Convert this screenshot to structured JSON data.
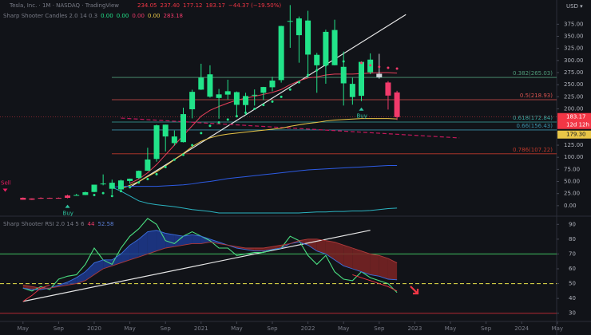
{
  "header": {
    "symbol": "Tesla, Inc. · 1M · NASDAQ · TradingView",
    "ohlc": [
      "234.05",
      "237.40",
      "177.12",
      "183.17",
      "−44.37 (−19.50%)"
    ],
    "currency": "USD ▾"
  },
  "chart_data": [
    {
      "type": "candlestick",
      "title": "Sharp Shooter Candles 2.0 14 0.3",
      "readings": [
        {
          "label": "0.00",
          "color": "#22e389"
        },
        {
          "label": "0.00",
          "color": "#22e389"
        },
        {
          "label": "0.00",
          "color": "#f23a6b"
        },
        {
          "label": "0.00",
          "color": "#e8c547"
        },
        {
          "label": "283.18",
          "color": "#f23a6b"
        }
      ],
      "categories": [
        "2019-05",
        "2019-06",
        "2019-07",
        "2019-08",
        "2019-09",
        "2019-10",
        "2019-11",
        "2019-12",
        "2020-01",
        "2020-02",
        "2020-03",
        "2020-04",
        "2020-05",
        "2020-06",
        "2020-07",
        "2020-08",
        "2020-09",
        "2020-10",
        "2020-11",
        "2020-12",
        "2021-01",
        "2021-02",
        "2021-03",
        "2021-04",
        "2021-05",
        "2021-06",
        "2021-07",
        "2021-08",
        "2021-09",
        "2021-10",
        "2021-11",
        "2021-12",
        "2022-01",
        "2022-02",
        "2022-03",
        "2022-04",
        "2022-05",
        "2022-06",
        "2022-07",
        "2022-08",
        "2022-09",
        "2022-10",
        "2022-11"
      ],
      "open": [
        16.3,
        12.4,
        15.1,
        16.1,
        15.0,
        16.2,
        21.0,
        22.1,
        28.3,
        45.7,
        47.4,
        33.6,
        51.0,
        57.2,
        72.2,
        96.6,
        167.4,
        143.0,
        131.3,
        199.2,
        239.8,
        271.4,
        230.0,
        229.5,
        234.6,
        207.9,
        227.9,
        233.3,
        244.7,
        259.5,
        381.7,
        386.9,
        382.6,
        311.7,
        289.9,
        363.0,
        286.9,
        251.7,
        227.0,
        301.8,
        272.6,
        254.5,
        234.05
      ],
      "high": [
        17.0,
        15.2,
        17.2,
        16.6,
        16.8,
        22.7,
        24.5,
        29.0,
        43.5,
        64.6,
        53.8,
        53.8,
        56.0,
        72.6,
        119.7,
        167.5,
        167.5,
        155.3,
        202.6,
        239.6,
        293.3,
        290.1,
        241.1,
        260.3,
        236.0,
        233.3,
        240.2,
        245.5,
        266.3,
        371.7,
        414.5,
        390.9,
        402.7,
        315.7,
        363.7,
        384.3,
        318.5,
        264.2,
        298.3,
        314.7,
        313.8,
        257.5,
        237.4
      ],
      "low": [
        12.2,
        11.8,
        14.2,
        14.6,
        14.8,
        15.2,
        20.8,
        21.8,
        28.1,
        42.1,
        23.4,
        29.8,
        45.4,
        55.4,
        72.0,
        91.0,
        112.1,
        124.0,
        130.7,
        180.4,
        239.1,
        223.3,
        179.8,
        219.8,
        182.3,
        187.7,
        206.8,
        218.2,
        236.3,
        254.3,
        326.2,
        295.4,
        264.0,
        233.3,
        252.0,
        290.0,
        206.9,
        208.7,
        216.2,
        271.8,
        262.5,
        198.6,
        177.12
      ],
      "close": [
        12.3,
        14.9,
        16.1,
        15.0,
        16.1,
        21.0,
        22.0,
        27.9,
        43.4,
        44.5,
        34.9,
        52.1,
        55.7,
        72.0,
        95.4,
        166.1,
        143.0,
        129.3,
        189.2,
        235.2,
        264.5,
        225.2,
        222.6,
        236.5,
        208.4,
        226.6,
        229.1,
        245.2,
        258.5,
        371.3,
        381.6,
        352.3,
        312.2,
        290.1,
        359.2,
        290.3,
        252.8,
        224.5,
        297.1,
        275.6,
        265.3,
        227.5,
        183.17
      ],
      "candle_colors": [
        "#f23a6b",
        "#f23a6b",
        "#f23a6b",
        "#f23a6b",
        "#f23a6b",
        "#f23a6b",
        "#22e389",
        "#22e389",
        "#22e389",
        "#22e389",
        "#22e389",
        "#22e389",
        "#22e389",
        "#22e389",
        "#22e389",
        "#22e389",
        "#22e389",
        "#22e389",
        "#22e389",
        "#22e389",
        "#22e389",
        "#22e389",
        "#22e389",
        "#22e389",
        "#22e389",
        "#22e389",
        "#22e389",
        "#22e389",
        "#22e389",
        "#22e389",
        "#22e389",
        "#22e389",
        "#22e389",
        "#22e389",
        "#22e389",
        "#22e389",
        "#22e389",
        "#22e389",
        "#22e389",
        "#22e389",
        "#d1d4dc",
        "#f23a6b",
        "#f23a6b"
      ],
      "series": [
        {
          "color": "#e8c547",
          "values": [
            null,
            null,
            null,
            null,
            null,
            null,
            null,
            null,
            null,
            null,
            null,
            35,
            42,
            50,
            60,
            70,
            82,
            95,
            108,
            122,
            133,
            140,
            145,
            148,
            150,
            152,
            154,
            156,
            158,
            160,
            164,
            167,
            170,
            172,
            175,
            177,
            178,
            179,
            180,
            180,
            180,
            180,
            179.3
          ]
        },
        {
          "color": "#e8405a",
          "values": [
            null,
            null,
            null,
            null,
            null,
            null,
            null,
            null,
            null,
            null,
            null,
            null,
            46,
            55,
            68,
            85,
            105,
            125,
            145,
            165,
            185,
            197,
            205,
            212,
            218,
            222,
            226,
            230,
            234,
            240,
            250,
            258,
            264,
            266,
            270,
            272,
            272,
            272,
            273,
            274,
            275,
            275,
            274
          ]
        },
        {
          "color": "#2d5be3",
          "values": [
            null,
            null,
            null,
            null,
            null,
            null,
            null,
            null,
            null,
            null,
            38,
            40,
            40,
            40,
            40,
            40,
            41,
            42,
            43,
            45,
            48,
            50,
            53,
            56,
            58,
            60,
            62,
            64,
            66,
            68,
            70,
            72,
            74,
            75,
            76,
            77,
            78,
            79,
            80,
            81,
            82,
            83,
            83
          ]
        },
        {
          "color": "#2bb3c0",
          "values": [
            null,
            null,
            null,
            null,
            null,
            null,
            null,
            null,
            null,
            null,
            38,
            30,
            20,
            10,
            5,
            2,
            0,
            -2,
            -5,
            -8,
            -10,
            -12,
            -15,
            -15,
            -15,
            -15,
            -15,
            -15,
            -15,
            -15,
            -15,
            -15,
            -14,
            -13,
            -13,
            -12,
            -12,
            -11,
            -11,
            -10,
            -8,
            -6,
            -5
          ]
        }
      ],
      "sar": [
        {
          "color": "#22e389",
          "values": [
            null,
            null,
            null,
            null,
            null,
            null,
            null,
            null,
            22,
            26,
            20,
            30,
            38,
            48,
            55,
            65,
            80,
            95,
            105,
            125,
            150,
            165,
            172,
            178,
            185,
            192,
            200,
            208,
            215,
            225,
            240,
            255,
            270,
            280,
            290,
            296,
            298,
            null,
            null,
            null,
            null,
            null,
            null
          ]
        },
        {
          "color": "#f23a6b",
          "values": [
            null,
            null,
            null,
            null,
            null,
            null,
            null,
            null,
            null,
            null,
            null,
            null,
            null,
            null,
            null,
            null,
            null,
            null,
            null,
            null,
            null,
            null,
            null,
            null,
            null,
            null,
            null,
            null,
            null,
            null,
            null,
            null,
            null,
            null,
            null,
            null,
            null,
            null,
            295,
            290,
            287,
            285,
            283.18
          ]
        }
      ],
      "fib": [
        {
          "label": "0.382(265.03)",
          "value": 265.03,
          "color": "#4f9a78"
        },
        {
          "label": "0.5(218.93)",
          "value": 218.93,
          "color": "#d9534f"
        },
        {
          "label": "0.618(172.84)",
          "value": 172.84,
          "color": "#3aa7a0"
        },
        {
          "label": "0.66(156.43)",
          "value": 156.43,
          "color": "#3a8fa7"
        },
        {
          "label": "0.786(107.22)",
          "value": 107.22,
          "color": "#c0392b"
        }
      ],
      "trendlines": [
        {
          "from": [
            "2020-05",
            38
          ],
          "to": [
            "2022-12",
            395
          ],
          "color": "#e6e6e6",
          "style": "solid"
        },
        {
          "from": [
            "2020-04",
            181
          ],
          "to": [
            "2023-06",
            140
          ],
          "color": "#c2185b",
          "style": "dashed"
        }
      ],
      "signals": [
        {
          "label": "Sell",
          "side": "sell",
          "date": "2019-03",
          "color": "#e91e63"
        },
        {
          "label": "Buy",
          "side": "buy",
          "date": "2019-10",
          "color": "#2ec4a0"
        },
        {
          "label": "Buy",
          "side": "buy",
          "date": "2022-07",
          "color": "#2ec4a0"
        }
      ],
      "tags": [
        {
          "label": "183.17",
          "value": 183.17,
          "color": "#f23645",
          "countdown": "12d 12h"
        },
        {
          "label": "179.30",
          "value": 179.3,
          "color": "#e8c547"
        }
      ],
      "ylim": [
        -20,
        425
      ],
      "yticks": [
        {
          "value": 0,
          "label": "0.00"
        },
        {
          "value": 25,
          "label": "25.00"
        },
        {
          "value": 50,
          "label": "50.00"
        },
        {
          "value": 75,
          "label": "75.00"
        },
        {
          "value": 100,
          "label": "100.00"
        },
        {
          "value": 125,
          "label": "125.00"
        },
        {
          "value": 150,
          "label": "150.00"
        },
        {
          "value": 200,
          "label": "200.00"
        },
        {
          "value": 225,
          "label": "225.00"
        },
        {
          "value": 250,
          "label": "250.00"
        },
        {
          "value": 275,
          "label": "275.00"
        },
        {
          "value": 300,
          "label": "300.00"
        },
        {
          "value": 325,
          "label": "325.00"
        },
        {
          "value": 350,
          "label": "350.00"
        },
        {
          "value": 375,
          "label": "375.00"
        }
      ],
      "xticks": [
        {
          "value": "2019-05",
          "label": "May"
        },
        {
          "value": "2019-09",
          "label": "Sep"
        },
        {
          "value": "2020-01",
          "label": "2020"
        },
        {
          "value": "2020-05",
          "label": "May"
        },
        {
          "value": "2020-09",
          "label": "Sep"
        },
        {
          "value": "2021-01",
          "label": "2021"
        },
        {
          "value": "2021-05",
          "label": "May"
        },
        {
          "value": "2021-09",
          "label": "Sep"
        },
        {
          "value": "2022-01",
          "label": "2022"
        },
        {
          "value": "2022-05",
          "label": "May"
        },
        {
          "value": "2022-09",
          "label": "Sep"
        },
        {
          "value": "2023-01",
          "label": "2023"
        },
        {
          "value": "2023-05",
          "label": "May"
        },
        {
          "value": "2023-09",
          "label": "Sep"
        },
        {
          "value": "2024-01",
          "label": "2024"
        },
        {
          "value": "2024-05",
          "label": "May"
        }
      ],
      "grid": false
    },
    {
      "type": "line",
      "title": "Sharp Shooter RSI 2.0 14 5 6",
      "readings": [
        {
          "label": "44",
          "color": "#f23a6b"
        },
        {
          "label": "52.58",
          "color": "#5b7fd6"
        }
      ],
      "series": [
        {
          "color": "#4ade80",
          "values": [
            47,
            45,
            48,
            46,
            53,
            55,
            56,
            63,
            74,
            66,
            63,
            74,
            82,
            87,
            94,
            90,
            79,
            77,
            82,
            85,
            82,
            79,
            74,
            74,
            69,
            70,
            71,
            71,
            73,
            74,
            82,
            79,
            69,
            63,
            69,
            58,
            53,
            52,
            58,
            54,
            52,
            50,
            44
          ]
        },
        {
          "color": "#3b6fe0",
          "values": [
            47,
            46,
            46,
            47,
            49,
            51,
            54,
            58,
            64,
            66,
            66,
            70,
            76,
            80,
            85,
            86,
            84,
            83,
            82,
            83,
            82,
            80,
            78,
            76,
            74,
            73,
            72,
            72,
            73,
            74,
            77,
            78,
            76,
            72,
            70,
            66,
            62,
            60,
            58,
            56,
            55,
            53,
            52.58
          ]
        },
        {
          "color": "#b03a3a",
          "values": [
            49,
            48,
            47,
            47,
            48,
            49,
            50,
            52,
            56,
            60,
            62,
            64,
            66,
            68,
            70,
            72,
            74,
            75,
            76,
            77,
            77,
            78,
            77,
            76,
            75,
            74,
            74,
            74,
            75,
            76,
            77,
            79,
            80,
            80,
            79,
            78,
            76,
            74,
            72,
            70,
            69,
            67,
            64
          ]
        },
        {
          "color": "#f23645",
          "values": [
            38,
            42,
            47,
            49,
            null,
            null,
            null,
            null,
            null,
            null,
            null,
            null,
            null,
            null,
            null,
            null,
            null,
            null,
            null,
            null,
            null,
            null,
            null,
            null,
            null,
            null,
            null,
            null,
            null,
            null,
            null,
            null,
            null,
            null,
            null,
            null,
            null,
            56,
            54,
            52,
            50,
            48,
            45
          ]
        }
      ],
      "cloud": {
        "up": "#1d3a8f",
        "down": "#7d2424"
      },
      "levels": [
        {
          "value": 70,
          "color": "#3fbf5f",
          "style": "solid"
        },
        {
          "value": 50,
          "color": "#e9e34a",
          "style": "dashed"
        },
        {
          "value": 30,
          "color": "#b22833",
          "style": "solid"
        }
      ],
      "trendlines": [
        {
          "from": [
            "2019-05",
            38
          ],
          "to": [
            "2022-08",
            86
          ],
          "color": "#e6e6e6",
          "style": "solid"
        }
      ],
      "ylim": [
        25,
        95
      ],
      "yticks": [
        90,
        80,
        70,
        60,
        50,
        40,
        30
      ],
      "grid": false
    }
  ]
}
